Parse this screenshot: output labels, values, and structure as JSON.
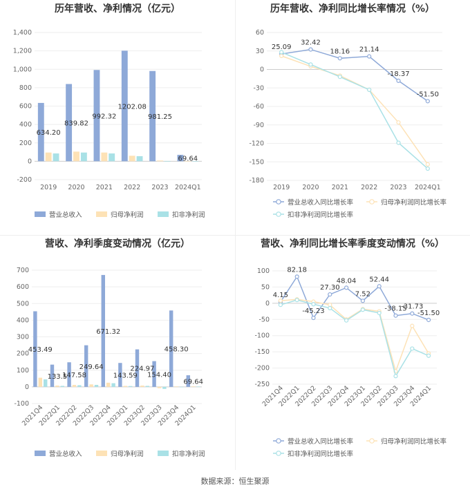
{
  "colors": {
    "revenue": "#8ea9d8",
    "net_profit": "#fde2b6",
    "deducted_profit": "#a9e1e6"
  },
  "footer": {
    "source": "数据来源：恒生聚源"
  },
  "chart_data": [
    {
      "id": "annual-amount",
      "type": "bar",
      "title": "历年营收、净利情况（亿元）",
      "categories": [
        "2019",
        "2020",
        "2021",
        "2022",
        "2023",
        "2024Q1"
      ],
      "ylim": [
        -200,
        1400
      ],
      "yticks": [
        -200,
        0,
        200,
        400,
        600,
        800,
        "1,000",
        "1,200",
        "1,400"
      ],
      "ytick_values": [
        -200,
        0,
        200,
        400,
        600,
        800,
        1000,
        1200,
        1400
      ],
      "label_series": 0,
      "labels": [
        "634.20",
        "839.82",
        "992.32",
        "1202.08",
        "981.25",
        "69.64"
      ],
      "series": [
        {
          "name": "营业总收入",
          "color": "#8ea9d8",
          "values": [
            634.2,
            839.82,
            992.32,
            1202.08,
            981.25,
            69.64
          ]
        },
        {
          "name": "归母净利润",
          "color": "#fde2b6",
          "values": [
            95,
            105,
            95,
            60,
            8,
            3
          ]
        },
        {
          "name": "扣非净利润",
          "color": "#a9e1e6",
          "values": [
            85,
            95,
            85,
            55,
            -5,
            2
          ]
        }
      ]
    },
    {
      "id": "annual-growth",
      "type": "line",
      "title": "历年营收、净利同比增长率情况（%）",
      "categories": [
        "2019",
        "2020",
        "2021",
        "2022",
        "2023",
        "2024Q1"
      ],
      "ylim": [
        -180,
        60
      ],
      "yticks": [
        -180,
        -150,
        -120,
        -90,
        -60,
        -30,
        0,
        30,
        60
      ],
      "ytick_values": [
        -180,
        -150,
        -120,
        -90,
        -60,
        -30,
        0,
        30,
        60
      ],
      "label_series": 0,
      "labels": [
        "25.09",
        "32.42",
        "18.16",
        "21.14",
        "-18.37",
        "-51.50"
      ],
      "series": [
        {
          "name": "营业总收入同比增长率",
          "color": "#8ea9d8",
          "values": [
            25.09,
            32.42,
            18.16,
            21.14,
            -18.37,
            -51.5
          ]
        },
        {
          "name": "归母净利润同比增长率",
          "color": "#fde2b6",
          "values": [
            22,
            5,
            -10,
            -33,
            -86,
            -154
          ]
        },
        {
          "name": "扣非净利润同比增长率",
          "color": "#a9e1e6",
          "values": [
            28,
            8,
            -12,
            -33,
            -119,
            -161
          ]
        }
      ]
    },
    {
      "id": "quarterly-amount",
      "type": "bar",
      "title": "营收、净利季度变动情况（亿元）",
      "categories": [
        "2021Q4",
        "2022Q1",
        "2022Q2",
        "2022Q3",
        "2022Q4",
        "2023Q1",
        "2023Q2",
        "2023Q3",
        "2023Q4",
        "2024Q1"
      ],
      "ylim": [
        -100,
        700
      ],
      "yticks": [
        -100,
        0,
        100,
        200,
        300,
        400,
        500,
        600,
        700
      ],
      "ytick_values": [
        -100,
        0,
        100,
        200,
        300,
        400,
        500,
        600,
        700
      ],
      "label_series": 0,
      "labels": [
        "453.49",
        "133.5",
        "147.58",
        "249.64",
        "671.32",
        "143.59",
        "224.97",
        "154.40",
        "458.30",
        "69.64"
      ],
      "series": [
        {
          "name": "营业总收入",
          "color": "#8ea9d8",
          "values": [
            453.49,
            133.5,
            147.58,
            249.64,
            671.32,
            143.59,
            224.97,
            154.4,
            458.3,
            69.64
          ]
        },
        {
          "name": "归母净利润",
          "color": "#fde2b6",
          "values": [
            55,
            8,
            12,
            15,
            25,
            6,
            8,
            -8,
            3,
            3
          ]
        },
        {
          "name": "扣非净利润",
          "color": "#a9e1e6",
          "values": [
            45,
            6,
            10,
            12,
            22,
            5,
            6,
            -12,
            -2,
            2
          ]
        }
      ]
    },
    {
      "id": "quarterly-growth",
      "type": "line",
      "title": "营收、净利同比增长率季度变动情况（%）",
      "categories": [
        "2021Q4",
        "2022Q1",
        "2022Q2",
        "2022Q3",
        "2022Q4",
        "2023Q1",
        "2023Q2",
        "2023Q3",
        "2023Q4",
        "2024Q1"
      ],
      "ylim": [
        -250,
        100
      ],
      "yticks": [
        -250,
        -200,
        -150,
        -100,
        -50,
        0,
        50,
        100
      ],
      "ytick_values": [
        -250,
        -200,
        -150,
        -100,
        -50,
        0,
        50,
        100
      ],
      "label_series": 0,
      "labels": [
        "4.15",
        "82.18",
        "-45.23",
        "27.30",
        "48.04",
        "7.52",
        "52.44",
        "-38.15",
        "-31.73",
        "-51.50"
      ],
      "series": [
        {
          "name": "营业总收入同比增长率",
          "color": "#8ea9d8",
          "values": [
            4.15,
            82.18,
            -45.23,
            27.3,
            48.04,
            7.52,
            52.44,
            -38.15,
            -31.73,
            -51.5
          ]
        },
        {
          "name": "归母净利润同比增长率",
          "color": "#fde2b6",
          "values": [
            8,
            12,
            5,
            -5,
            -50,
            -18,
            -25,
            -210,
            -70,
            -155
          ]
        },
        {
          "name": "扣非净利润同比增长率",
          "color": "#a9e1e6",
          "values": [
            -5,
            10,
            -3,
            -15,
            -53,
            -20,
            -30,
            -225,
            -140,
            -162
          ]
        }
      ]
    }
  ]
}
